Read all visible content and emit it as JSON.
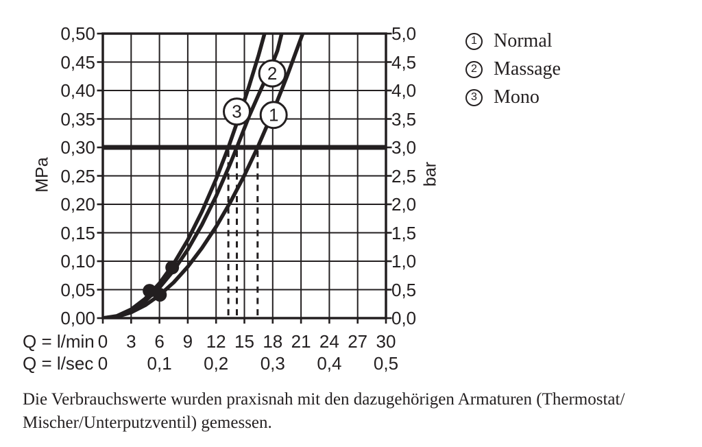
{
  "colors": {
    "ink": "#231f20",
    "background": "#ffffff"
  },
  "chart_data": {
    "type": "line",
    "title": "",
    "x_axis": {
      "label_primary": "Q = l/min",
      "ticks_primary": [
        "0",
        "3",
        "6",
        "9",
        "12",
        "15",
        "18",
        "21",
        "24",
        "27",
        "30"
      ],
      "label_secondary": "Q = l/sec",
      "ticks_secondary": [
        "0",
        "0,1",
        "0,2",
        "0,3",
        "0,4",
        "0,5"
      ],
      "range_lmin": [
        0,
        30
      ],
      "grid_step_lmin": 3
    },
    "y_axis_left": {
      "label": "MPa",
      "ticks": [
        "0,50",
        "0,45",
        "0,40",
        "0,35",
        "0,30",
        "0,25",
        "0,20",
        "0,15",
        "0,10",
        "0,05",
        "0,00"
      ],
      "range_mpa": [
        0,
        0.5
      ],
      "grid_step_mpa": 0.05
    },
    "y_axis_right": {
      "label": "bar",
      "ticks": [
        "5,0",
        "4,5",
        "4,0",
        "3,5",
        "3,0",
        "2,5",
        "2,0",
        "1,5",
        "1,0",
        "0,5",
        "0,0"
      ],
      "range_bar": [
        0,
        5
      ]
    },
    "reference_line": {
      "value_mpa": 0.3,
      "value_bar": 3.0
    },
    "series": [
      {
        "id": "1",
        "name": "Normal",
        "flow_at_3bar_lmin": 16.4,
        "label_pos": [
          18.1,
          0.357
        ],
        "points": [
          [
            0,
            0
          ],
          [
            1.5,
            0.0025
          ],
          [
            3,
            0.01
          ],
          [
            4.5,
            0.0226
          ],
          [
            6,
            0.0402
          ],
          [
            7.5,
            0.0627
          ],
          [
            9,
            0.0903
          ],
          [
            10.5,
            0.123
          ],
          [
            12,
            0.1606
          ],
          [
            13.5,
            0.2033
          ],
          [
            15,
            0.251
          ],
          [
            16.4,
            0.3
          ],
          [
            18,
            0.3614
          ],
          [
            19.5,
            0.4242
          ],
          [
            21,
            0.4919
          ],
          [
            21.4,
            0.51
          ]
        ]
      },
      {
        "id": "2",
        "name": "Massage",
        "flow_at_3bar_lmin": 14.2,
        "label_pos": [
          17.95,
          0.43
        ],
        "points": [
          [
            0,
            0
          ],
          [
            1.5,
            0.0033
          ],
          [
            3,
            0.0134
          ],
          [
            4.5,
            0.0301
          ],
          [
            6,
            0.0536
          ],
          [
            7.5,
            0.0837
          ],
          [
            9,
            0.1205
          ],
          [
            10.5,
            0.164
          ],
          [
            12,
            0.2142
          ],
          [
            13.5,
            0.2712
          ],
          [
            14.2,
            0.3
          ],
          [
            15.5,
            0.355
          ],
          [
            16.7,
            0.4
          ],
          [
            17.8,
            0.44
          ],
          [
            18.5,
            0.47
          ],
          [
            19.1,
            0.51
          ]
        ]
      },
      {
        "id": "3",
        "name": "Mono",
        "flow_at_3bar_lmin": 13.3,
        "label_pos": [
          14.2,
          0.363
        ],
        "points": [
          [
            0,
            0
          ],
          [
            1.5,
            0.0038
          ],
          [
            3,
            0.0153
          ],
          [
            4.5,
            0.0343
          ],
          [
            6,
            0.0611
          ],
          [
            7.5,
            0.0954
          ],
          [
            9,
            0.1374
          ],
          [
            10.5,
            0.187
          ],
          [
            12,
            0.2442
          ],
          [
            13.3,
            0.3
          ],
          [
            14.5,
            0.357
          ],
          [
            15.5,
            0.408
          ],
          [
            16.5,
            0.462
          ],
          [
            17.3,
            0.51
          ]
        ]
      }
    ],
    "dashed_drop_lines_lmin": [
      13.3,
      14.2,
      16.4
    ],
    "dots_lmin_mpa": [
      [
        4.95,
        0.048
      ],
      [
        6.05,
        0.041
      ],
      [
        7.35,
        0.089
      ]
    ],
    "legend_position": "top-right",
    "grid": true
  },
  "legend": {
    "items": [
      {
        "symbol": "1",
        "label": "Normal"
      },
      {
        "symbol": "2",
        "label": "Massage"
      },
      {
        "symbol": "3",
        "label": "Mono"
      }
    ]
  },
  "caption": {
    "line1": "Die Verbrauchswerte wurden praxisnah mit den dazugehörigen Armaturen (Thermostat/",
    "line2": "Mischer/Unterputzventil) gemessen."
  }
}
